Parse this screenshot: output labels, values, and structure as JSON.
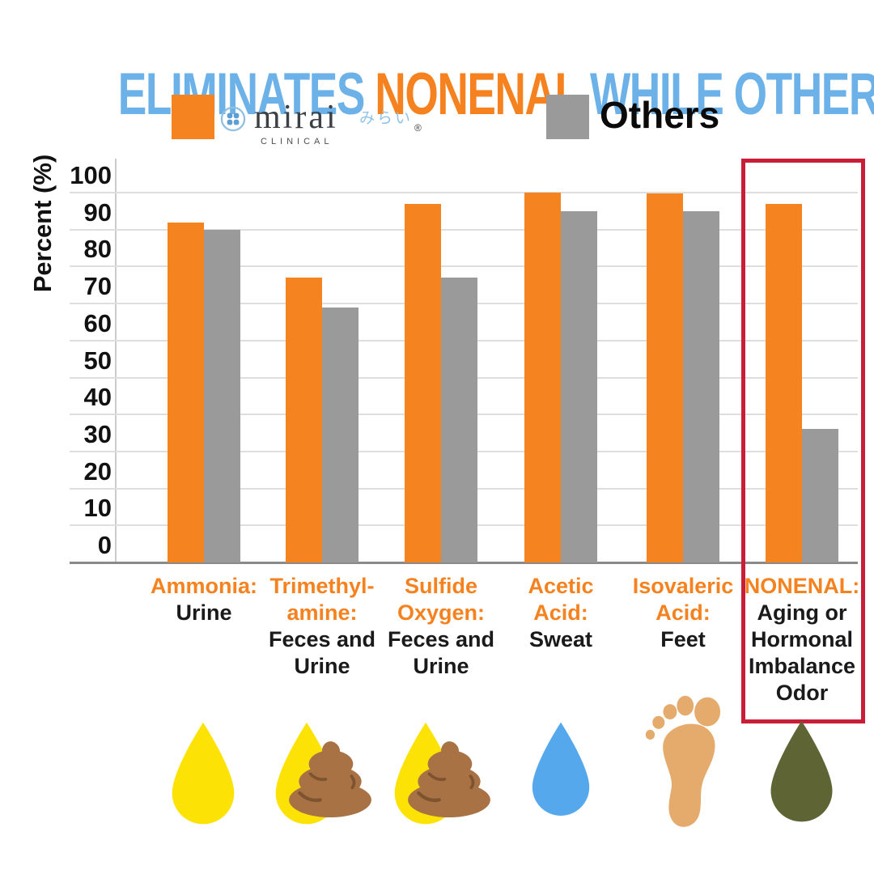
{
  "title": {
    "part1": "ELIMINATES ",
    "part2": "NONENAL",
    "part3": " WHILE OTHERS DON’T"
  },
  "legend": {
    "mirai_swatch_color": "#F5831F",
    "mirai_logo": {
      "name": "mirai",
      "jp": "みらい",
      "registered": "®",
      "sub": "CLINICAL"
    },
    "others_swatch_color": "#9A9A9A",
    "others_label": "Others"
  },
  "chart_data": {
    "type": "bar",
    "title": "Eliminates Nonenal While Others Don't",
    "ylabel": "Percent (%)",
    "xlabel": "",
    "ylim": [
      0,
      100
    ],
    "ytick_step": 10,
    "grid": true,
    "legend_position": "top",
    "series": [
      {
        "name": "Mirai Clinical",
        "color": "#F5831F",
        "values": [
          92,
          77,
          97,
          100,
          99.8,
          97
        ]
      },
      {
        "name": "Others",
        "color": "#9A9A9A",
        "values": [
          90,
          69,
          77,
          95,
          95,
          36
        ]
      }
    ],
    "categories": [
      {
        "label_lines": [
          "Ammonia:"
        ],
        "sub_lines": [
          "Urine"
        ],
        "icon": "urine-drop-icon",
        "highlighted": false
      },
      {
        "label_lines": [
          "Trimethyl-",
          "amine:"
        ],
        "sub_lines": [
          "Feces and",
          "Urine"
        ],
        "icon": "urine-feces-icon",
        "highlighted": false
      },
      {
        "label_lines": [
          "Sulfide",
          "Oxygen:"
        ],
        "sub_lines": [
          "Feces and",
          "Urine"
        ],
        "icon": "urine-feces-icon",
        "highlighted": false
      },
      {
        "label_lines": [
          "Acetic",
          "Acid:"
        ],
        "sub_lines": [
          "Sweat"
        ],
        "icon": "sweat-drop-icon",
        "highlighted": false
      },
      {
        "label_lines": [
          "Isovaleric",
          "Acid:"
        ],
        "sub_lines": [
          "Feet"
        ],
        "icon": "footprint-icon",
        "highlighted": false
      },
      {
        "label_lines": [
          "NONENAL:"
        ],
        "sub_lines": [
          "Aging or",
          "Hormonal",
          "Imbalance",
          "Odor"
        ],
        "icon": "nonenal-drop-icon",
        "highlighted": true
      }
    ],
    "highlight_box_color": "#C81E37"
  },
  "colors": {
    "title_blue": "#6CB2E9",
    "title_orange": "#F5821F",
    "category_orange": "#F5821F",
    "icon_yellow": "#FCE205",
    "icon_poop_brown": "#A97245",
    "icon_poop_shade": "#7E5430",
    "icon_blue": "#55A8EC",
    "icon_foot_tan": "#E4AB6D",
    "icon_olive": "#5F6434"
  }
}
